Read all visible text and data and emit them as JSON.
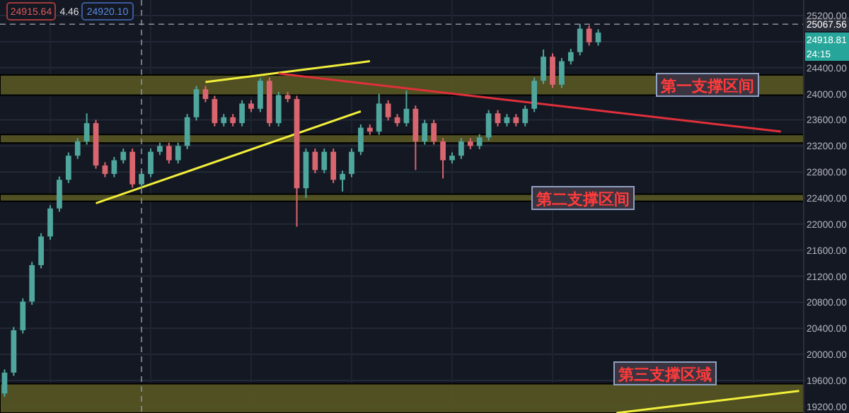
{
  "chart_data": {
    "type": "candlestick",
    "categories": [
      null,
      null,
      null,
      null,
      null,
      null,
      null,
      null,
      null,
      null,
      null,
      null,
      null,
      null,
      null,
      null,
      null,
      null,
      null,
      null,
      null,
      null,
      null,
      null,
      null,
      null,
      null,
      null,
      null,
      null,
      null,
      null,
      null,
      null,
      null,
      null,
      null,
      null,
      null,
      null,
      null,
      null,
      null,
      null,
      null,
      null,
      null,
      null,
      null,
      null,
      null,
      null,
      null,
      null,
      null,
      null,
      null,
      null,
      null,
      null,
      null,
      null,
      null,
      null,
      null,
      null,
      null,
      null,
      null,
      null,
      null,
      null,
      null,
      null,
      null,
      null,
      null,
      null,
      null,
      null,
      null,
      null,
      null,
      null,
      null,
      null,
      null,
      null
    ],
    "ohlc": [
      [
        19400,
        19770,
        19350,
        19720
      ],
      [
        19720,
        20420,
        19670,
        20370
      ],
      [
        20370,
        20860,
        20320,
        20810
      ],
      [
        20810,
        21420,
        20760,
        21370
      ],
      [
        21370,
        21860,
        21320,
        21810
      ],
      [
        21810,
        22290,
        21760,
        22240
      ],
      [
        22240,
        22730,
        22190,
        22680
      ],
      [
        22680,
        23100,
        22630,
        23050
      ],
      [
        23050,
        23320,
        23000,
        23270
      ],
      [
        23270,
        23700,
        23220,
        23550
      ],
      [
        23550,
        23600,
        22850,
        22900
      ],
      [
        22900,
        22950,
        22720,
        22770
      ],
      [
        22770,
        23030,
        22720,
        22980
      ],
      [
        22980,
        23160,
        22930,
        23110
      ],
      [
        23110,
        23160,
        22560,
        22610
      ],
      [
        22610,
        22820,
        22560,
        22770
      ],
      [
        22770,
        23160,
        22720,
        23110
      ],
      [
        23110,
        23250,
        23060,
        23200
      ],
      [
        23200,
        23250,
        22930,
        22980
      ],
      [
        22980,
        23250,
        22930,
        23200
      ],
      [
        23200,
        23690,
        23150,
        23640
      ],
      [
        23640,
        24120,
        23590,
        24070
      ],
      [
        24070,
        24120,
        23870,
        23920
      ],
      [
        23920,
        23970,
        23500,
        23550
      ],
      [
        23550,
        23690,
        23500,
        23640
      ],
      [
        23640,
        23690,
        23500,
        23550
      ],
      [
        23550,
        23900,
        23500,
        23850
      ],
      [
        23850,
        23900,
        23720,
        23770
      ],
      [
        23770,
        24240,
        23720,
        24200
      ],
      [
        24200,
        24250,
        23500,
        23550
      ],
      [
        23550,
        24030,
        23500,
        23980
      ],
      [
        23980,
        24030,
        23870,
        23920
      ],
      [
        23920,
        23970,
        21960,
        22550
      ],
      [
        22550,
        23160,
        22400,
        23110
      ],
      [
        23110,
        23160,
        22780,
        22830
      ],
      [
        22830,
        23160,
        22780,
        23110
      ],
      [
        23110,
        23160,
        22630,
        22680
      ],
      [
        22680,
        22820,
        22500,
        22770
      ],
      [
        22770,
        23160,
        22720,
        23110
      ],
      [
        23110,
        23530,
        23060,
        23480
      ],
      [
        23480,
        23530,
        23370,
        23420
      ],
      [
        23420,
        24000,
        23370,
        23850
      ],
      [
        23850,
        23900,
        23590,
        23640
      ],
      [
        23640,
        23690,
        23500,
        23550
      ],
      [
        23550,
        24050,
        23500,
        23770
      ],
      [
        23770,
        23820,
        22830,
        23270
      ],
      [
        23270,
        23600,
        23220,
        23550
      ],
      [
        23550,
        23600,
        23220,
        23270
      ],
      [
        23270,
        23320,
        22700,
        22980
      ],
      [
        22980,
        23100,
        22930,
        23050
      ],
      [
        23050,
        23320,
        23000,
        23270
      ],
      [
        23270,
        23320,
        23150,
        23200
      ],
      [
        23200,
        23380,
        23150,
        23330
      ],
      [
        23330,
        23750,
        23280,
        23700
      ],
      [
        23700,
        23750,
        23500,
        23550
      ],
      [
        23550,
        23690,
        23500,
        23640
      ],
      [
        23640,
        23690,
        23500,
        23550
      ],
      [
        23550,
        23820,
        23500,
        23770
      ],
      [
        23770,
        24250,
        23720,
        24200
      ],
      [
        24200,
        24680,
        24150,
        24570
      ],
      [
        24570,
        24620,
        24090,
        24140
      ],
      [
        24140,
        24550,
        24090,
        24500
      ],
      [
        24500,
        24690,
        24450,
        24640
      ],
      [
        24640,
        25070,
        24590,
        25000
      ],
      [
        25000,
        25050,
        24740,
        24790
      ],
      [
        24790,
        24990,
        24740,
        24940
      ],
      null,
      null,
      null,
      null,
      null,
      null,
      null,
      null,
      null,
      null,
      null,
      null,
      null,
      null,
      null,
      null,
      null,
      null,
      null,
      null,
      null,
      null
    ],
    "colors": [
      "#4fa69d",
      "#4fa69d",
      "#4fa69d",
      "#4fa69d",
      "#4fa69d",
      "#4fa69d",
      "#4fa69d",
      "#4fa69d",
      "#4fa69d",
      "#4fa69d",
      "#d9666f",
      "#d9666f",
      "#4fa69d",
      "#4fa69d",
      "#d9666f",
      "#4fa69d",
      "#4fa69d",
      "#4fa69d",
      "#d9666f",
      "#4fa69d",
      "#4fa69d",
      "#4fa69d",
      "#d9666f",
      "#d9666f",
      "#4fa69d",
      "#d9666f",
      "#4fa69d",
      "#d9666f",
      "#4fa69d",
      "#d9666f",
      "#4fa69d",
      "#d9666f",
      "#d9666f",
      "#4fa69d",
      "#d9666f",
      "#4fa69d",
      "#d9666f",
      "#4fa69d",
      "#4fa69d",
      "#4fa69d",
      "#d9666f",
      "#4fa69d",
      "#d9666f",
      "#d9666f",
      "#4fa69d",
      "#d9666f",
      "#4fa69d",
      "#d9666f",
      "#d9666f",
      "#4fa69d",
      "#4fa69d",
      "#d9666f",
      "#4fa69d",
      "#4fa69d",
      "#d9666f",
      "#4fa69d",
      "#d9666f",
      "#4fa69d",
      "#4fa69d",
      "#4fa69d",
      "#d9666f",
      "#4fa69d",
      "#4fa69d",
      "#4fa69d",
      "#d9666f",
      "#4fa69d",
      null,
      null,
      null,
      null,
      null,
      null,
      null,
      null,
      null,
      null,
      null,
      null,
      null,
      null,
      null,
      null,
      null,
      null,
      null,
      null,
      null,
      null
    ],
    "series": [
      {
        "type": "line",
        "color": "#f2ef3a",
        "values": [
          null,
          null,
          null,
          null,
          null,
          null,
          null,
          null,
          null,
          null,
          22320,
          null,
          null,
          null,
          null,
          null,
          null,
          null,
          null,
          null,
          null,
          null,
          null,
          null,
          null,
          null,
          null,
          null,
          null,
          null,
          null,
          null,
          null,
          null,
          null,
          null,
          null,
          null,
          null,
          23730,
          null,
          null,
          null,
          null,
          null,
          null,
          null,
          null,
          null,
          null,
          null,
          null,
          null,
          null,
          null,
          null,
          null,
          null,
          null,
          null,
          null,
          null,
          null,
          null,
          null,
          null,
          null,
          null,
          null,
          null,
          null,
          null,
          null,
          null,
          null,
          null,
          null,
          null,
          null,
          null,
          null,
          null,
          null,
          null,
          null,
          null,
          null,
          null
        ]
      },
      {
        "type": "line",
        "color": "#f2ef3a",
        "values": [
          null,
          null,
          null,
          null,
          null,
          null,
          null,
          null,
          null,
          null,
          null,
          null,
          null,
          null,
          null,
          null,
          null,
          null,
          null,
          null,
          null,
          null,
          24180,
          null,
          null,
          null,
          null,
          null,
          null,
          null,
          null,
          null,
          null,
          null,
          null,
          null,
          null,
          null,
          null,
          null,
          24500,
          null,
          null,
          null,
          null,
          null,
          null,
          null,
          null,
          null,
          null,
          null,
          null,
          null,
          null,
          null,
          null,
          null,
          null,
          null,
          null,
          null,
          null,
          null,
          null,
          null,
          null,
          null,
          null,
          null,
          null,
          null,
          null,
          null,
          null,
          null,
          null,
          null,
          null,
          null,
          null,
          null,
          null,
          null,
          null,
          null,
          null,
          null
        ]
      },
      {
        "type": "line",
        "color": "#e0303a",
        "values": [
          null,
          null,
          null,
          null,
          null,
          null,
          null,
          null,
          null,
          null,
          null,
          null,
          null,
          null,
          null,
          null,
          null,
          null,
          null,
          null,
          null,
          null,
          null,
          null,
          null,
          null,
          null,
          null,
          null,
          null,
          24310,
          null,
          null,
          null,
          null,
          null,
          null,
          null,
          null,
          null,
          null,
          null,
          null,
          null,
          null,
          null,
          null,
          null,
          null,
          null,
          null,
          null,
          null,
          null,
          null,
          null,
          null,
          null,
          null,
          null,
          null,
          null,
          null,
          null,
          null,
          null,
          null,
          null,
          null,
          null,
          null,
          null,
          null,
          null,
          null,
          null,
          null,
          null,
          null,
          null,
          null,
          null,
          null,
          null,
          null,
          23420,
          null,
          null
        ]
      },
      {
        "type": "line",
        "color": "#f2ef3a",
        "values": [
          null,
          null,
          null,
          null,
          null,
          null,
          null,
          null,
          null,
          null,
          null,
          null,
          null,
          null,
          null,
          null,
          null,
          null,
          null,
          null,
          null,
          null,
          null,
          null,
          null,
          null,
          null,
          null,
          null,
          null,
          null,
          null,
          null,
          null,
          null,
          null,
          null,
          null,
          null,
          null,
          null,
          null,
          null,
          null,
          null,
          null,
          null,
          null,
          null,
          null,
          null,
          null,
          null,
          null,
          null,
          null,
          null,
          null,
          null,
          null,
          null,
          null,
          null,
          null,
          null,
          null,
          null,
          19100,
          null,
          null,
          null,
          null,
          null,
          null,
          null,
          null,
          null,
          null,
          null,
          null,
          null,
          null,
          null,
          null,
          null,
          null,
          null,
          19440
        ]
      }
    ],
    "bands": [
      {
        "axis": "y",
        "from": 23980,
        "to": 24290,
        "color": "#5a5a22"
      },
      {
        "axis": "y",
        "from": 23245,
        "to": 23375,
        "color": "#5a5a22"
      },
      {
        "axis": "y",
        "from": 22350,
        "to": 22460,
        "color": "#5a5a22"
      },
      {
        "axis": "y",
        "from": 19100,
        "to": 19550,
        "color": "#5a5a22"
      }
    ],
    "ref_lines": [
      {
        "axis": "y",
        "value": 25067.56,
        "label": "25067.56",
        "line_style": "dashed"
      }
    ],
    "annotations": [
      "24915.64",
      "4.46",
      "24920.10",
      "24918.81",
      "24:15",
      "第一支撑区间",
      "第二支撑区间",
      "第三支撑区域"
    ],
    "ylim": [
      19100,
      25440
    ],
    "yticks": [
      {
        "value": 19200,
        "label": "19200.00"
      },
      {
        "value": 19600,
        "label": "19600.00"
      },
      {
        "value": 20000,
        "label": "20000.00"
      },
      {
        "value": 20400,
        "label": "20400.00"
      },
      {
        "value": 20800,
        "label": "20800.00"
      },
      {
        "value": 21200,
        "label": "21200.00"
      },
      {
        "value": 21600,
        "label": "21600.00"
      },
      {
        "value": 22000,
        "label": "22000.00"
      },
      {
        "value": 22400,
        "label": "22400.00"
      },
      {
        "value": 22800,
        "label": "22800.00"
      },
      {
        "value": 23200,
        "label": "23200.00"
      },
      {
        "value": 23600,
        "label": "23600.00"
      },
      {
        "value": 24000,
        "label": "24000.00"
      },
      {
        "value": 24400,
        "label": "24400.00"
      },
      {
        "value": 24800,
        "label": null
      },
      {
        "value": 25200,
        "label": "25200.00"
      }
    ],
    "tick_labels": "y",
    "grid": true
  }
}
